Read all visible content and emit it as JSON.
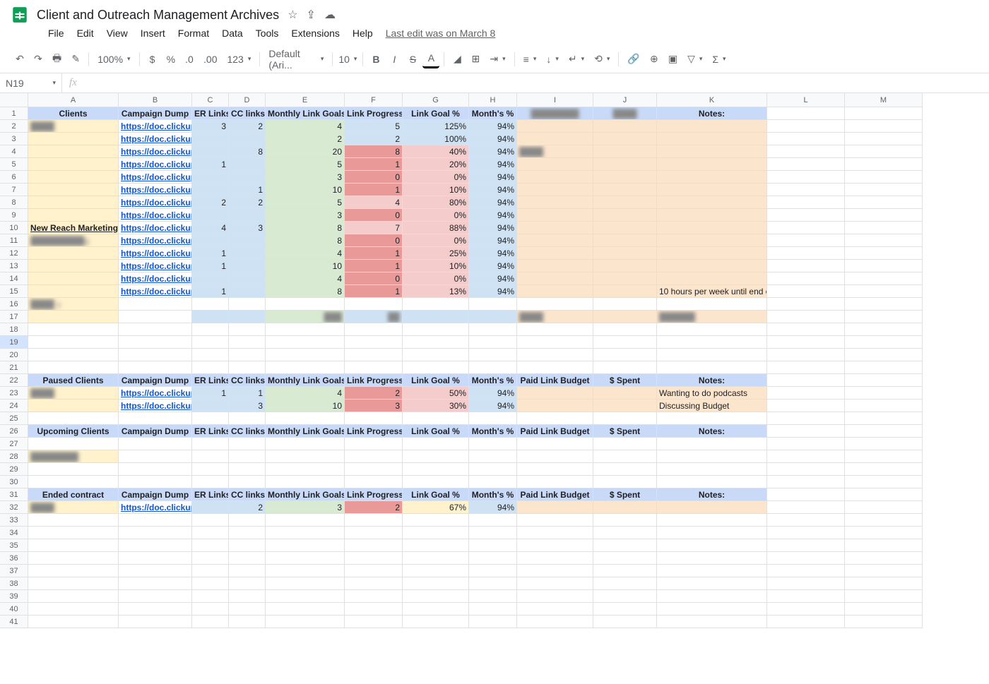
{
  "doc": {
    "title": "Client and Outreach Management Archives",
    "last_edit": "Last edit was on March 8",
    "cell_ref": "N19"
  },
  "menu": {
    "items": [
      "File",
      "Edit",
      "View",
      "Insert",
      "Format",
      "Data",
      "Tools",
      "Extensions",
      "Help"
    ]
  },
  "toolbar": {
    "zoom": "100%",
    "font": "Default (Ari...",
    "fontsize": "10"
  },
  "columns": [
    "A",
    "B",
    "C",
    "D",
    "E",
    "F",
    "G",
    "H",
    "I",
    "J",
    "K",
    "L",
    "M"
  ],
  "col_classes": [
    "cA",
    "cB",
    "cC",
    "cD",
    "cE",
    "cF",
    "cG",
    "cH",
    "cI",
    "cJ",
    "cK",
    "cL",
    "cM"
  ],
  "headers": {
    "clients": "Clients",
    "paused": "Paused Clients",
    "upcoming": "Upcoming Clients",
    "ended": "Ended contract",
    "campaign": "Campaign Dump",
    "er": "ER Links",
    "cc": "CC links",
    "goals": "Monthly Link Goals",
    "progress": "Link Progress",
    "goalpct": "Link Goal %",
    "monthpct": "Month's %",
    "budget": "Paid Link Budget",
    "spent": "$ Spent",
    "notes": "Notes:"
  },
  "link_text": "https://doc.clickup",
  "rows": [
    {
      "r": 1,
      "type": "header",
      "A": "clients"
    },
    {
      "r": 2,
      "client": "████",
      "er": "3",
      "cc": "2",
      "goals": "4",
      "prog": "5",
      "gpct": "125%",
      "mpct": "94%",
      "pclass": "blue"
    },
    {
      "r": 3,
      "client": "",
      "er": "",
      "cc": "",
      "goals": "2",
      "prog": "2",
      "gpct": "100%",
      "mpct": "94%",
      "pclass": "blue"
    },
    {
      "r": 4,
      "client": "",
      "er": "",
      "cc": "8",
      "goals": "20",
      "prog": "8",
      "gpct": "40%",
      "mpct": "94%",
      "pclass": "red",
      "ibg": true
    },
    {
      "r": 5,
      "client": "",
      "er": "1",
      "cc": "",
      "goals": "5",
      "prog": "1",
      "gpct": "20%",
      "mpct": "94%",
      "pclass": "red"
    },
    {
      "r": 6,
      "client": "",
      "er": "",
      "cc": "",
      "goals": "3",
      "prog": "0",
      "gpct": "0%",
      "mpct": "94%",
      "pclass": "red"
    },
    {
      "r": 7,
      "client": "",
      "er": "",
      "cc": "1",
      "goals": "10",
      "prog": "1",
      "gpct": "10%",
      "mpct": "94%",
      "pclass": "red"
    },
    {
      "r": 8,
      "client": "",
      "er": "2",
      "cc": "2",
      "goals": "5",
      "prog": "4",
      "gpct": "80%",
      "mpct": "94%",
      "pclass": "redlt"
    },
    {
      "r": 9,
      "client": "",
      "er": "",
      "cc": "",
      "goals": "3",
      "prog": "0",
      "gpct": "0%",
      "mpct": "94%",
      "pclass": "red"
    },
    {
      "r": 10,
      "client": "New Reach Marketing",
      "er": "4",
      "cc": "3",
      "goals": "8",
      "prog": "7",
      "gpct": "88%",
      "mpct": "94%",
      "pclass": "redlt",
      "noblur": true
    },
    {
      "r": 11,
      "client": "█████████g",
      "er": "",
      "cc": "",
      "goals": "8",
      "prog": "0",
      "gpct": "0%",
      "mpct": "94%",
      "pclass": "red"
    },
    {
      "r": 12,
      "client": "",
      "er": "1",
      "cc": "",
      "goals": "4",
      "prog": "1",
      "gpct": "25%",
      "mpct": "94%",
      "pclass": "red"
    },
    {
      "r": 13,
      "client": "",
      "er": "1",
      "cc": "",
      "goals": "10",
      "prog": "1",
      "gpct": "10%",
      "mpct": "94%",
      "pclass": "red"
    },
    {
      "r": 14,
      "client": "",
      "er": "",
      "cc": "",
      "goals": "4",
      "prog": "0",
      "gpct": "0%",
      "mpct": "94%",
      "pclass": "red"
    },
    {
      "r": 15,
      "client": "",
      "er": "1",
      "cc": "",
      "goals": "8",
      "prog": "1",
      "gpct": "13%",
      "mpct": "94%",
      "pclass": "red",
      "notes": "10 hours per week until end o"
    },
    {
      "r": 16,
      "type": "clientonly",
      "client": "████ y"
    },
    {
      "r": 17,
      "type": "summary"
    },
    {
      "r": 18,
      "type": "empty"
    },
    {
      "r": 19,
      "type": "empty",
      "sel": true
    },
    {
      "r": 20,
      "type": "empty"
    },
    {
      "r": 21,
      "type": "empty"
    },
    {
      "r": 22,
      "type": "header",
      "A": "paused",
      "budget": true
    },
    {
      "r": 23,
      "client": "████",
      "er": "1",
      "cc": "1",
      "goals": "4",
      "prog": "2",
      "gpct": "50%",
      "mpct": "94%",
      "pclass": "red",
      "notes": "Wanting to do podcasts"
    },
    {
      "r": 24,
      "client": "",
      "er": "",
      "cc": "3",
      "goals": "10",
      "prog": "3",
      "gpct": "30%",
      "mpct": "94%",
      "pclass": "red",
      "notes": "Discussing Budget"
    },
    {
      "r": 25,
      "type": "empty"
    },
    {
      "r": 26,
      "type": "header",
      "A": "upcoming",
      "budget": true
    },
    {
      "r": 27,
      "type": "empty"
    },
    {
      "r": 28,
      "type": "clientonly",
      "client": "████████"
    },
    {
      "r": 29,
      "type": "empty"
    },
    {
      "r": 30,
      "type": "empty"
    },
    {
      "r": 31,
      "type": "header",
      "A": "ended",
      "budget": true
    },
    {
      "r": 32,
      "client": "████",
      "er": "",
      "cc": "2",
      "goals": "3",
      "prog": "2",
      "gpct": "67%",
      "mpct": "94%",
      "pclass": "red",
      "gclass": "yellow"
    },
    {
      "r": 33,
      "type": "empty"
    },
    {
      "r": 34,
      "type": "empty"
    },
    {
      "r": 35,
      "type": "empty"
    },
    {
      "r": 36,
      "type": "empty"
    },
    {
      "r": 37,
      "type": "empty"
    },
    {
      "r": 38,
      "type": "empty"
    },
    {
      "r": 39,
      "type": "empty"
    },
    {
      "r": 40,
      "type": "empty"
    },
    {
      "r": 41,
      "type": "empty"
    }
  ]
}
